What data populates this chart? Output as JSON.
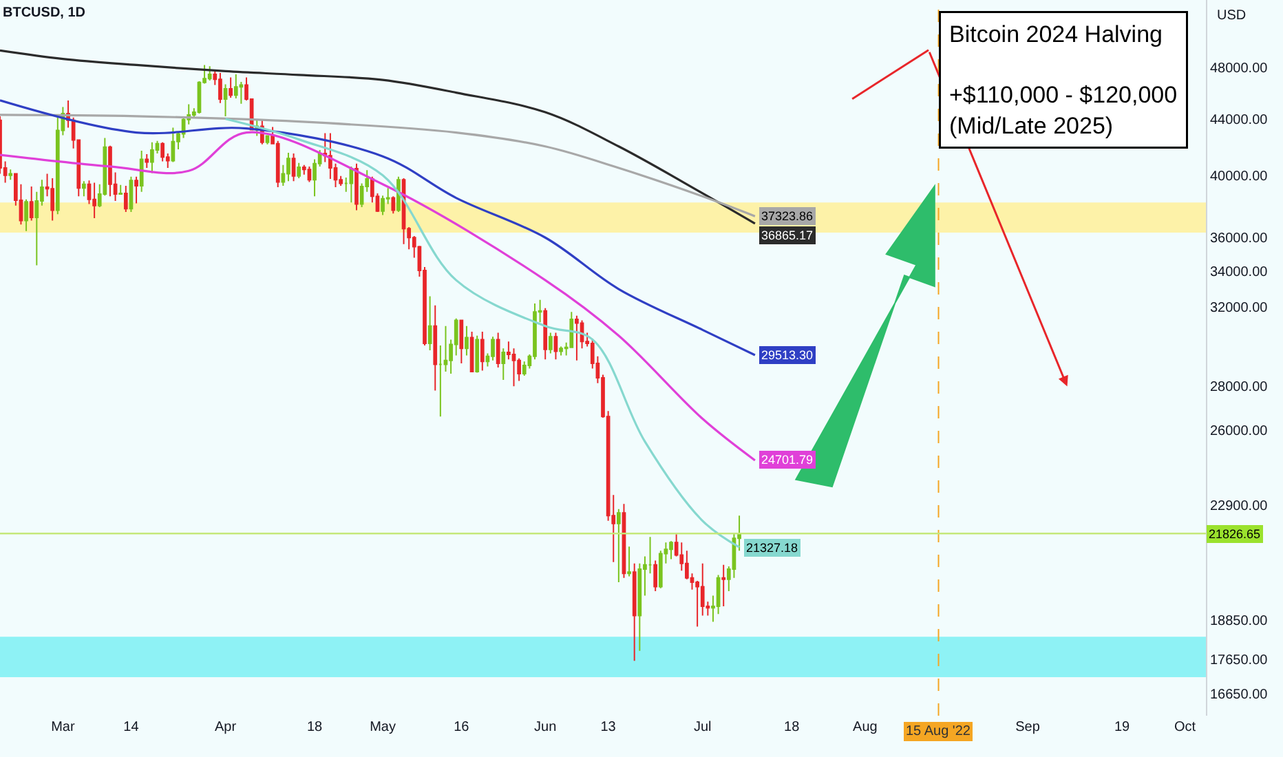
{
  "chart_data": {
    "type": "candlestick",
    "title": "BTCUSD, 1D",
    "ylabel": "USD",
    "x": [
      "2022-02-17",
      "2022-02-18",
      "2022-02-19",
      "2022-02-20",
      "2022-02-21",
      "2022-02-22",
      "2022-02-23",
      "2022-02-24",
      "2022-02-25",
      "2022-02-26",
      "2022-02-27",
      "2022-02-28",
      "2022-03-01",
      "2022-03-02",
      "2022-03-03",
      "2022-03-04",
      "2022-03-05",
      "2022-03-06",
      "2022-03-07",
      "2022-03-08",
      "2022-03-09",
      "2022-03-10",
      "2022-03-11",
      "2022-03-12",
      "2022-03-13",
      "2022-03-14",
      "2022-03-15",
      "2022-03-16",
      "2022-03-17",
      "2022-03-18",
      "2022-03-19",
      "2022-03-20",
      "2022-03-21",
      "2022-03-22",
      "2022-03-23",
      "2022-03-24",
      "2022-03-25",
      "2022-03-26",
      "2022-03-27",
      "2022-03-28",
      "2022-03-29",
      "2022-03-30",
      "2022-03-31",
      "2022-04-01",
      "2022-04-02",
      "2022-04-03",
      "2022-04-04",
      "2022-04-05",
      "2022-04-06",
      "2022-04-07",
      "2022-04-08",
      "2022-04-09",
      "2022-04-10",
      "2022-04-11",
      "2022-04-12",
      "2022-04-13",
      "2022-04-14",
      "2022-04-15",
      "2022-04-16",
      "2022-04-17",
      "2022-04-18",
      "2022-04-19",
      "2022-04-20",
      "2022-04-21",
      "2022-04-22",
      "2022-04-23",
      "2022-04-24",
      "2022-04-25",
      "2022-04-26",
      "2022-04-27",
      "2022-04-28",
      "2022-04-29",
      "2022-04-30",
      "2022-05-01",
      "2022-05-02",
      "2022-05-03",
      "2022-05-04",
      "2022-05-05",
      "2022-05-06",
      "2022-05-07",
      "2022-05-08",
      "2022-05-09",
      "2022-05-10",
      "2022-05-11",
      "2022-05-12",
      "2022-05-13",
      "2022-05-14",
      "2022-05-15",
      "2022-05-16",
      "2022-05-17",
      "2022-05-18",
      "2022-05-19",
      "2022-05-20",
      "2022-05-21",
      "2022-05-22",
      "2022-05-23",
      "2022-05-24",
      "2022-05-25",
      "2022-05-26",
      "2022-05-27",
      "2022-05-28",
      "2022-05-29",
      "2022-05-30",
      "2022-05-31",
      "2022-06-01",
      "2022-06-02",
      "2022-06-03",
      "2022-06-04",
      "2022-06-05",
      "2022-06-06",
      "2022-06-07",
      "2022-06-08",
      "2022-06-09",
      "2022-06-10",
      "2022-06-11",
      "2022-06-12",
      "2022-06-13",
      "2022-06-14",
      "2022-06-15",
      "2022-06-16",
      "2022-06-17",
      "2022-06-18",
      "2022-06-19",
      "2022-06-20",
      "2022-06-21",
      "2022-06-22",
      "2022-06-23",
      "2022-06-24",
      "2022-06-25",
      "2022-06-26",
      "2022-06-27",
      "2022-06-28",
      "2022-06-29",
      "2022-06-30",
      "2022-07-01",
      "2022-07-02",
      "2022-07-03",
      "2022-07-04",
      "2022-07-05",
      "2022-07-06",
      "2022-07-07",
      "2022-07-08"
    ],
    "ohlc": [
      [
        43900,
        44200,
        40100,
        40500
      ],
      [
        40500,
        40950,
        39500,
        40000
      ],
      [
        40000,
        40400,
        39700,
        40100
      ],
      [
        40100,
        40100,
        38000,
        38350
      ],
      [
        38350,
        39400,
        36800,
        37050
      ],
      [
        37050,
        38400,
        36400,
        38250
      ],
      [
        38250,
        39250,
        37050,
        37250
      ],
      [
        37250,
        38900,
        34350,
        38300
      ],
      [
        38300,
        39700,
        38000,
        39200
      ],
      [
        39200,
        40100,
        38600,
        39100
      ],
      [
        39100,
        39800,
        37050,
        37700
      ],
      [
        37700,
        44200,
        37450,
        43150
      ],
      [
        43150,
        44900,
        42800,
        44400
      ],
      [
        44400,
        45400,
        43350,
        43900
      ],
      [
        43900,
        44100,
        41850,
        42450
      ],
      [
        42450,
        42500,
        38600,
        39150
      ],
      [
        39150,
        39600,
        38600,
        39400
      ],
      [
        39400,
        39650,
        38100,
        38400
      ],
      [
        38400,
        39500,
        37200,
        38000
      ],
      [
        38000,
        39400,
        37900,
        38750
      ],
      [
        38750,
        42600,
        38650,
        41950
      ],
      [
        41950,
        42050,
        38600,
        39400
      ],
      [
        39400,
        40200,
        38300,
        38750
      ],
      [
        38750,
        39350,
        38700,
        38800
      ],
      [
        38800,
        39300,
        37600,
        37800
      ],
      [
        37800,
        39900,
        37600,
        39650
      ],
      [
        39650,
        39900,
        38150,
        39300
      ],
      [
        39300,
        41700,
        38900,
        41100
      ],
      [
        41100,
        41450,
        40500,
        40900
      ],
      [
        40900,
        42300,
        40150,
        41750
      ],
      [
        41750,
        42400,
        41500,
        42200
      ],
      [
        42200,
        42300,
        40950,
        41250
      ],
      [
        41250,
        41500,
        40500,
        41000
      ],
      [
        41000,
        43350,
        40900,
        42350
      ],
      [
        42350,
        43000,
        41800,
        42900
      ],
      [
        42900,
        44200,
        42600,
        43950
      ],
      [
        43950,
        45100,
        43600,
        44300
      ],
      [
        44300,
        44800,
        44100,
        44500
      ],
      [
        44500,
        46900,
        44400,
        46800
      ],
      [
        46800,
        48200,
        46700,
        47100
      ],
      [
        47100,
        48100,
        46950,
        47450
      ],
      [
        47450,
        47700,
        46600,
        47050
      ],
      [
        47050,
        47550,
        45200,
        45500
      ],
      [
        45500,
        46650,
        44200,
        46300
      ],
      [
        46300,
        47200,
        45600,
        45800
      ],
      [
        45800,
        47450,
        45550,
        46450
      ],
      [
        46450,
        46850,
        45150,
        46600
      ],
      [
        46600,
        47200,
        45400,
        45500
      ],
      [
        45500,
        45500,
        43150,
        43200
      ],
      [
        43200,
        43900,
        42750,
        43450
      ],
      [
        43450,
        43950,
        42150,
        42300
      ],
      [
        42300,
        42800,
        42150,
        42750
      ],
      [
        42750,
        43400,
        42150,
        42200
      ],
      [
        42200,
        42400,
        39200,
        39550
      ],
      [
        39550,
        40700,
        39300,
        40100
      ],
      [
        40100,
        41550,
        39600,
        41150
      ],
      [
        41150,
        41500,
        39600,
        39950
      ],
      [
        39950,
        40850,
        39800,
        40550
      ],
      [
        40550,
        40700,
        40050,
        40400
      ],
      [
        40400,
        40600,
        39550,
        39700
      ],
      [
        39700,
        41100,
        38600,
        40800
      ],
      [
        40800,
        41750,
        40600,
        41500
      ],
      [
        41500,
        42950,
        40900,
        41350
      ],
      [
        41350,
        42950,
        39750,
        40500
      ],
      [
        40500,
        40800,
        39200,
        39700
      ],
      [
        39700,
        39950,
        39300,
        39450
      ],
      [
        39450,
        39850,
        38900,
        39450
      ],
      [
        39450,
        40600,
        38200,
        40450
      ],
      [
        40450,
        40800,
        37700,
        38100
      ],
      [
        38100,
        39450,
        37900,
        39250
      ],
      [
        39250,
        40350,
        38900,
        39750
      ],
      [
        39750,
        39900,
        38200,
        38600
      ],
      [
        38600,
        38800,
        37600,
        37650
      ],
      [
        37650,
        38650,
        37400,
        38450
      ],
      [
        38450,
        39150,
        38100,
        38500
      ],
      [
        38500,
        38600,
        37500,
        37700
      ],
      [
        37700,
        39900,
        37600,
        39700
      ],
      [
        39700,
        39800,
        35600,
        36550
      ],
      [
        36550,
        36650,
        35300,
        36000
      ],
      [
        36000,
        36100,
        34800,
        35450
      ],
      [
        35450,
        35500,
        33700,
        34050
      ],
      [
        34050,
        34250,
        30000,
        30100
      ],
      [
        30100,
        32600,
        29750,
        31000
      ],
      [
        31000,
        32100,
        27800,
        29050
      ],
      [
        29050,
        30000,
        26600,
        29050
      ],
      [
        29050,
        31000,
        28700,
        29250
      ],
      [
        29250,
        30300,
        28600,
        30050
      ],
      [
        30050,
        31400,
        29500,
        31300
      ],
      [
        31300,
        31300,
        29100,
        29850
      ],
      [
        29850,
        31000,
        29500,
        30400
      ],
      [
        30400,
        30700,
        28700,
        28700
      ],
      [
        28700,
        30500,
        28650,
        30300
      ],
      [
        30300,
        30700,
        28750,
        29200
      ],
      [
        29200,
        29600,
        28950,
        29450
      ],
      [
        29450,
        30450,
        29250,
        30300
      ],
      [
        30300,
        30650,
        28900,
        29100
      ],
      [
        29100,
        29850,
        28300,
        29650
      ],
      [
        29650,
        30200,
        29300,
        29550
      ],
      [
        29550,
        29850,
        28000,
        29250
      ],
      [
        29250,
        29350,
        28250,
        28600
      ],
      [
        28600,
        29200,
        28500,
        29000
      ],
      [
        29000,
        29550,
        28850,
        29450
      ],
      [
        29450,
        32200,
        29300,
        31750
      ],
      [
        31750,
        32400,
        31200,
        31800
      ],
      [
        31800,
        31950,
        29300,
        29800
      ],
      [
        29800,
        30650,
        29600,
        30450
      ],
      [
        30450,
        30650,
        29300,
        29700
      ],
      [
        29700,
        29950,
        29500,
        29850
      ],
      [
        29850,
        30150,
        29500,
        29900
      ],
      [
        29900,
        31750,
        29900,
        31350
      ],
      [
        31350,
        31550,
        29250,
        31150
      ],
      [
        31150,
        31300,
        29850,
        30200
      ],
      [
        30200,
        30650,
        29950,
        30100
      ],
      [
        30100,
        30350,
        28850,
        29100
      ],
      [
        29100,
        29450,
        28150,
        28400
      ],
      [
        28400,
        28550,
        26550,
        26600
      ],
      [
        26600,
        26850,
        22300,
        22500
      ],
      [
        22500,
        23300,
        20800,
        22200
      ],
      [
        22200,
        22750,
        20100,
        22600
      ],
      [
        22600,
        22950,
        20250,
        20400
      ],
      [
        20400,
        21350,
        20300,
        20450
      ],
      [
        20450,
        20750,
        17600,
        19000
      ],
      [
        19000,
        20750,
        17900,
        20550
      ],
      [
        20550,
        21000,
        19650,
        20700
      ],
      [
        20700,
        21700,
        20400,
        20700
      ],
      [
        20700,
        20850,
        19800,
        19950
      ],
      [
        19950,
        21200,
        19900,
        21100
      ],
      [
        21100,
        21500,
        20750,
        21250
      ],
      [
        21250,
        21550,
        20900,
        21500
      ],
      [
        21500,
        21800,
        21000,
        21050
      ],
      [
        21050,
        21500,
        20500,
        20750
      ],
      [
        20750,
        21200,
        20200,
        20250
      ],
      [
        20250,
        20400,
        19850,
        20100
      ],
      [
        20100,
        20150,
        18650,
        19950
      ],
      [
        19950,
        20750,
        19000,
        19300
      ],
      [
        19300,
        19450,
        19000,
        19250
      ],
      [
        19250,
        19650,
        18800,
        19300
      ],
      [
        19300,
        20350,
        19050,
        20250
      ],
      [
        20250,
        20700,
        19300,
        20200
      ],
      [
        20200,
        20650,
        19800,
        20550
      ],
      [
        20550,
        21850,
        20250,
        21650
      ],
      [
        21650,
        22500,
        21200,
        21826.65
      ]
    ],
    "colors": [
      "#e8262a",
      "#e8262a",
      "#7ac41f",
      "#e8262a",
      "#e8262a",
      "#7ac41f",
      "#e8262a",
      "#7ac41f",
      "#7ac41f",
      "#e8262a",
      "#e8262a",
      "#7ac41f",
      "#7ac41f",
      "#e8262a",
      "#e8262a",
      "#e8262a",
      "#7ac41f",
      "#e8262a",
      "#e8262a",
      "#7ac41f",
      "#7ac41f",
      "#e8262a",
      "#e8262a",
      "#7ac41f",
      "#e8262a",
      "#7ac41f",
      "#e8262a",
      "#7ac41f",
      "#e8262a",
      "#7ac41f",
      "#7ac41f",
      "#e8262a",
      "#e8262a",
      "#7ac41f",
      "#7ac41f",
      "#7ac41f",
      "#7ac41f",
      "#7ac41f",
      "#7ac41f",
      "#7ac41f",
      "#7ac41f",
      "#e8262a",
      "#e8262a",
      "#7ac41f",
      "#e8262a",
      "#7ac41f",
      "#7ac41f",
      "#e8262a",
      "#e8262a",
      "#7ac41f",
      "#e8262a",
      "#7ac41f",
      "#e8262a",
      "#e8262a",
      "#7ac41f",
      "#7ac41f",
      "#e8262a",
      "#7ac41f",
      "#e8262a",
      "#e8262a",
      "#7ac41f",
      "#7ac41f",
      "#e8262a",
      "#e8262a",
      "#e8262a",
      "#e8262a",
      "#7ac41f",
      "#7ac41f",
      "#e8262a",
      "#7ac41f",
      "#7ac41f",
      "#e8262a",
      "#e8262a",
      "#7ac41f",
      "#7ac41f",
      "#e8262a",
      "#7ac41f",
      "#e8262a",
      "#e8262a",
      "#e8262a",
      "#e8262a",
      "#e8262a",
      "#7ac41f",
      "#e8262a",
      "#7ac41f",
      "#7ac41f",
      "#7ac41f",
      "#7ac41f",
      "#e8262a",
      "#7ac41f",
      "#e8262a",
      "#7ac41f",
      "#e8262a",
      "#7ac41f",
      "#7ac41f",
      "#e8262a",
      "#7ac41f",
      "#e8262a",
      "#e8262a",
      "#e8262a",
      "#7ac41f",
      "#7ac41f",
      "#7ac41f",
      "#7ac41f",
      "#e8262a",
      "#7ac41f",
      "#e8262a",
      "#7ac41f",
      "#7ac41f",
      "#7ac41f",
      "#e8262a",
      "#e8262a",
      "#e8262a",
      "#e8262a",
      "#e8262a",
      "#e8262a",
      "#e8262a",
      "#e8262a",
      "#7ac41f",
      "#e8262a",
      "#7ac41f",
      "#e8262a",
      "#7ac41f",
      "#7ac41f",
      "#7ac41f",
      "#e8262a",
      "#7ac41f",
      "#7ac41f",
      "#7ac41f",
      "#e8262a",
      "#e8262a",
      "#e8262a",
      "#e8262a",
      "#e8262a",
      "#e8262a",
      "#e8262a",
      "#7ac41f",
      "#7ac41f",
      "#e8262a",
      "#7ac41f",
      "#7ac41f",
      "#7ac41f"
    ],
    "series": [
      {
        "type": "line",
        "color": "#2b2b2b",
        "x": [
          "2022-02-17",
          "2022-03-01",
          "2022-03-15",
          "2022-04-01",
          "2022-04-15",
          "2022-05-01",
          "2022-05-15",
          "2022-06-01",
          "2022-06-15",
          "2022-07-01",
          "2022-07-11"
        ],
        "values": [
          49400,
          48700,
          48200,
          47700,
          47400,
          47000,
          46000,
          44500,
          42000,
          38800,
          36865.17
        ],
        "value_labels": [
          null,
          null,
          null,
          null,
          null,
          null,
          null,
          null,
          null,
          null,
          "36865.17"
        ]
      },
      {
        "type": "line",
        "color": "#a8a8a8",
        "x": [
          "2022-02-17",
          "2022-03-15",
          "2022-04-15",
          "2022-05-15",
          "2022-06-01",
          "2022-06-15",
          "2022-07-01",
          "2022-07-11"
        ],
        "values": [
          44300,
          44200,
          43800,
          43000,
          42000,
          40500,
          38600,
          37323.86
        ],
        "value_labels": [
          null,
          null,
          null,
          null,
          null,
          null,
          null,
          "37323.86"
        ]
      },
      {
        "type": "line",
        "color": "#2f3fc4",
        "x": [
          "2022-02-17",
          "2022-03-15",
          "2022-04-05",
          "2022-05-01",
          "2022-05-15",
          "2022-06-01",
          "2022-06-15",
          "2022-07-01",
          "2022-07-11"
        ],
        "values": [
          45400,
          43000,
          43300,
          41300,
          38500,
          36000,
          33000,
          30800,
          29513.3
        ],
        "value_labels": [
          null,
          null,
          null,
          null,
          null,
          null,
          null,
          null,
          "29513.30"
        ]
      },
      {
        "type": "line",
        "color": "#e040d8",
        "x": [
          "2022-02-17",
          "2022-03-10",
          "2022-03-25",
          "2022-04-05",
          "2022-05-01",
          "2022-06-01",
          "2022-06-15",
          "2022-07-01",
          "2022-07-11"
        ],
        "values": [
          41400,
          40600,
          40300,
          43000,
          39400,
          33500,
          30500,
          26500,
          24701.79
        ],
        "value_labels": [
          null,
          null,
          null,
          null,
          null,
          null,
          null,
          null,
          "24701.79"
        ]
      },
      {
        "type": "line",
        "color": "#86d8cf",
        "x": [
          "2022-04-01",
          "2022-04-15",
          "2022-05-01",
          "2022-05-15",
          "2022-06-01",
          "2022-06-10",
          "2022-06-20",
          "2022-07-01",
          "2022-07-08"
        ],
        "values": [
          44000,
          42500,
          40000,
          33500,
          31000,
          30300,
          25500,
          22300,
          21327.18
        ],
        "value_labels": [
          null,
          null,
          null,
          null,
          null,
          null,
          null,
          null,
          "21327.18"
        ]
      }
    ],
    "ref_lines": [
      {
        "axis": "x",
        "value": "2022-08-15",
        "label": "15 Aug '22",
        "color": "#f5a623",
        "line_style": "dashed"
      },
      {
        "axis": "y",
        "value": 21826.65,
        "label": "21826.65",
        "color": "#c5e87a",
        "line_style": "solid"
      }
    ],
    "bands": [
      {
        "axis": "y",
        "from": 36300,
        "to": 38200,
        "color": "#fdf2a8"
      },
      {
        "axis": "y",
        "from": 17120,
        "to": 18330,
        "color": "#8ef2f5"
      }
    ],
    "annotations": [
      "Bitcoin 2024 Halving",
      "+$110,000 - $120,000",
      "(Mid/Late 2025)"
    ],
    "log": true,
    "ylim": [
      16040,
      53800
    ],
    "yticks": [
      {
        "value": 16650,
        "label": "16650.00"
      },
      {
        "value": 17650,
        "label": "17650.00"
      },
      {
        "value": 18850,
        "label": "18850.00"
      },
      {
        "value": 22900,
        "label": "22900.00"
      },
      {
        "value": 26000,
        "label": "26000.00"
      },
      {
        "value": 28000,
        "label": "28000.00"
      },
      {
        "value": 32000,
        "label": "32000.00"
      },
      {
        "value": 34000,
        "label": "34000.00"
      },
      {
        "value": 36000,
        "label": "36000.00"
      },
      {
        "value": 40000,
        "label": "40000.00"
      },
      {
        "value": 44000,
        "label": "44000.00"
      },
      {
        "value": 48000,
        "label": "48000.00"
      }
    ],
    "xlim": [
      "2022-02-17",
      "2022-10-05"
    ],
    "xticks": [
      {
        "value": "2022-03-01",
        "label": "Mar"
      },
      {
        "value": "2022-03-14",
        "label": "14"
      },
      {
        "value": "2022-04-01",
        "label": "Apr"
      },
      {
        "value": "2022-04-18",
        "label": "18"
      },
      {
        "value": "2022-05-01",
        "label": "May"
      },
      {
        "value": "2022-05-16",
        "label": "16"
      },
      {
        "value": "2022-06-01",
        "label": "Jun"
      },
      {
        "value": "2022-06-13",
        "label": "13"
      },
      {
        "value": "2022-07-01",
        "label": "Jul"
      },
      {
        "value": "2022-07-18",
        "label": "18"
      },
      {
        "value": "2022-08-01",
        "label": "Aug"
      },
      {
        "value": "2022-09-01",
        "label": "Sep"
      },
      {
        "value": "2022-09-19",
        "label": "19"
      },
      {
        "value": "2022-10-01",
        "label": "Oct"
      }
    ],
    "grid": false
  }
}
